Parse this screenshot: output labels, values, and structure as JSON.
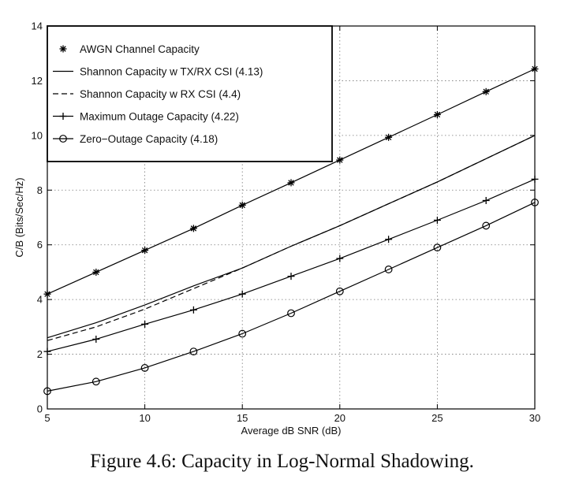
{
  "caption": "Figure 4.6: Capacity in Log-Normal Shadowing.",
  "chart_data": {
    "type": "line",
    "title": "",
    "xlabel": "Average dB SNR (dB)",
    "ylabel": "C/B (Bits/Sec/Hz)",
    "xlim": [
      5,
      30
    ],
    "ylim": [
      0,
      14
    ],
    "xticks": [
      5,
      10,
      15,
      20,
      25,
      30
    ],
    "yticks": [
      0,
      2,
      4,
      6,
      8,
      10,
      12,
      14
    ],
    "grid": true,
    "legend_position": "top-left",
    "x": [
      5,
      7.5,
      10,
      12.5,
      15,
      17.5,
      20,
      22.5,
      25,
      27.5,
      30
    ],
    "series": [
      {
        "name": "AWGN Channel Capacity",
        "style": "solid",
        "marker": "asterisk",
        "values": [
          4.2,
          5.0,
          5.8,
          6.6,
          7.45,
          8.27,
          9.1,
          9.93,
          10.76,
          11.6,
          12.43
        ]
      },
      {
        "name": "Shannon Capacity w TX/RX CSI (4.13)",
        "style": "solid",
        "marker": "none",
        "values": [
          2.6,
          3.15,
          3.8,
          4.5,
          5.15,
          5.95,
          6.7,
          7.5,
          8.3,
          9.15,
          10.0
        ]
      },
      {
        "name": "Shannon Capacity w RX CSI (4.4)",
        "style": "dashed",
        "marker": "none",
        "values": [
          2.5,
          3.0,
          3.65,
          4.4,
          5.15,
          5.95,
          6.7,
          7.5,
          8.3,
          9.15,
          10.0
        ]
      },
      {
        "name": "Maximum Outage Capacity (4.22)",
        "style": "solid",
        "marker": "plus",
        "values": [
          2.1,
          2.55,
          3.1,
          3.62,
          4.2,
          4.85,
          5.5,
          6.2,
          6.9,
          7.62,
          8.4
        ]
      },
      {
        "name": "Zero−Outage Capacity (4.18)",
        "style": "solid",
        "marker": "circle",
        "values": [
          0.65,
          1.0,
          1.5,
          2.1,
          2.75,
          3.5,
          4.3,
          5.1,
          5.9,
          6.7,
          7.55
        ]
      }
    ]
  }
}
